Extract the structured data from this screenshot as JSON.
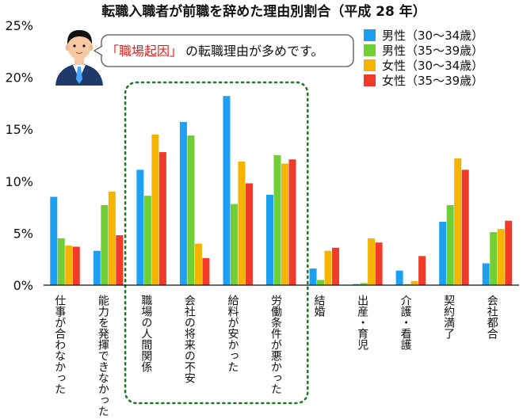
{
  "chart_data": {
    "type": "bar",
    "title": "転職入職者が前職を辞めた理由別割合（平成 28 年）",
    "categories": [
      "仕事が合わなかった",
      "能力を発揮できなかった",
      "職場の人間関係",
      "会社の将来の不安",
      "給料が安かった",
      "労働条件が悪かった",
      "結婚",
      "出産・育児",
      "介護・看護",
      "契約満了",
      "会社都合"
    ],
    "series": [
      {
        "name": "男性（30〜34歳）",
        "color": "#1ea0f0",
        "values": [
          8.5,
          3.3,
          11.1,
          15.7,
          18.2,
          8.7,
          1.6,
          0.1,
          1.4,
          6.1,
          2.1
        ]
      },
      {
        "name": "男性（35〜39歳）",
        "color": "#6fcf35",
        "values": [
          4.5,
          7.7,
          8.6,
          14.4,
          7.8,
          12.5,
          0.5,
          0.2,
          0.1,
          7.7,
          5.1
        ]
      },
      {
        "name": "女性（30〜34歳）",
        "color": "#f5b400",
        "values": [
          3.8,
          9.0,
          14.5,
          4.0,
          11.9,
          11.7,
          3.3,
          4.5,
          0.4,
          12.2,
          5.4
        ]
      },
      {
        "name": "女性（35〜39歳）",
        "color": "#f23a2a",
        "values": [
          3.7,
          4.8,
          12.8,
          2.6,
          9.8,
          12.1,
          3.6,
          4.1,
          2.8,
          11.1,
          6.2
        ]
      }
    ],
    "y_ticks": [
      "0%",
      "5%",
      "10%",
      "15%",
      "20%",
      "25%"
    ],
    "ylim": [
      0,
      25
    ],
    "xlabel": "",
    "ylabel": "",
    "legend_position": "top-right",
    "grid": false,
    "highlight": {
      "from_category": 2,
      "to_category": 5,
      "style": "dotted-green-box"
    }
  },
  "callout": {
    "emphasis": "「職場起因」",
    "rest": "の転職理由が多めです。",
    "icon": "businessman-icon"
  }
}
